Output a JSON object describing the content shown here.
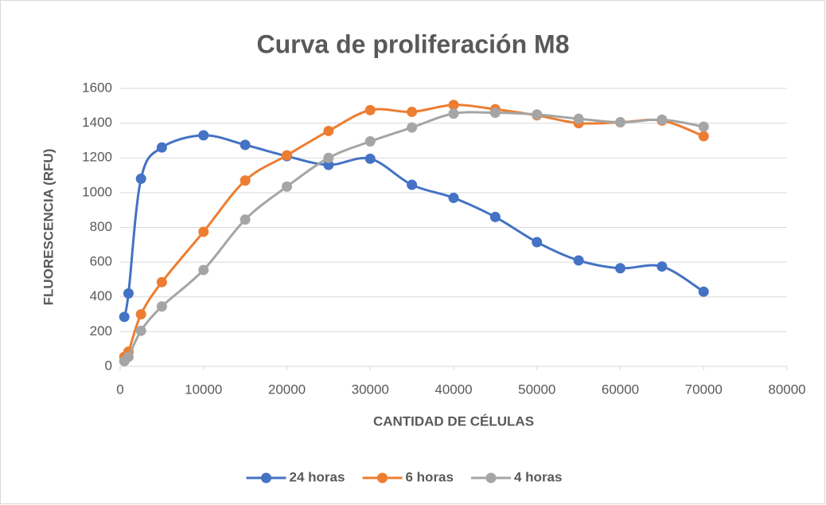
{
  "chart_data": {
    "type": "line",
    "smooth": true,
    "title": "Curva de proliferación M8",
    "x_label": "CANTIDAD DE CÉLULAS",
    "y_label": "FLUORESCENCIA (RFU)",
    "x": [
      500,
      1000,
      2500,
      5000,
      10000,
      15000,
      20000,
      25000,
      30000,
      35000,
      40000,
      45000,
      50000,
      55000,
      60000,
      65000,
      70000
    ],
    "series": [
      {
        "name": "24 horas",
        "color": "#4472c4",
        "values": [
          285,
          420,
          1080,
          1260,
          1330,
          1275,
          1210,
          1160,
          1195,
          1045,
          970,
          860,
          715,
          610,
          565,
          575,
          430
        ]
      },
      {
        "name": "6 horas",
        "color": "#ed7d31",
        "values": [
          55,
          85,
          300,
          485,
          775,
          1070,
          1215,
          1355,
          1475,
          1465,
          1505,
          1480,
          1445,
          1400,
          1405,
          1415,
          1325
        ]
      },
      {
        "name": "4 horas",
        "color": "#a5a5a5",
        "values": [
          30,
          55,
          205,
          345,
          555,
          845,
          1035,
          1200,
          1295,
          1375,
          1455,
          1460,
          1450,
          1425,
          1405,
          1420,
          1380
        ]
      }
    ],
    "xlim": [
      0,
      80000
    ],
    "xticks": [
      0,
      10000,
      20000,
      30000,
      40000,
      50000,
      60000,
      70000,
      80000
    ],
    "ylim": [
      0,
      1600
    ],
    "yticks": [
      0,
      200,
      400,
      600,
      800,
      1000,
      1200,
      1400,
      1600
    ],
    "grid": true,
    "legend": "bottom"
  }
}
